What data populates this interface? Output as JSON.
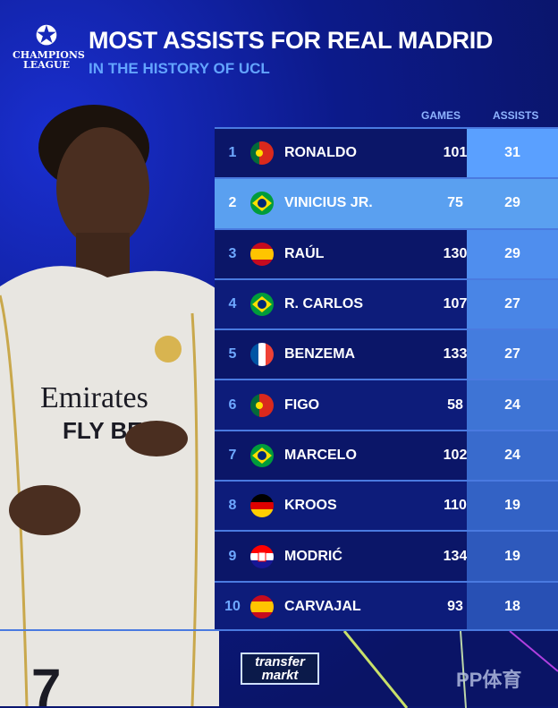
{
  "header": {
    "logo_text_1": "CHAMPIONS",
    "logo_text_2": "LEAGUE",
    "title": "MOST ASSISTS FOR REAL MADRID",
    "subtitle": "IN THE HISTORY OF UCL"
  },
  "columns": {
    "games": "GAMES",
    "assists": "ASSISTS"
  },
  "rows": [
    {
      "rank": "1",
      "flag": "portugal",
      "name": "RONALDO",
      "games": "101",
      "assists": "31"
    },
    {
      "rank": "2",
      "flag": "brazil",
      "name": "VINICIUS JR.",
      "games": "75",
      "assists": "29",
      "highlight": true
    },
    {
      "rank": "3",
      "flag": "spain",
      "name": "RAÚL",
      "games": "130",
      "assists": "29"
    },
    {
      "rank": "4",
      "flag": "brazil",
      "name": "R. CARLOS",
      "games": "107",
      "assists": "27"
    },
    {
      "rank": "5",
      "flag": "france",
      "name": "BENZEMA",
      "games": "133",
      "assists": "27"
    },
    {
      "rank": "6",
      "flag": "portugal",
      "name": "FIGO",
      "games": "58",
      "assists": "24"
    },
    {
      "rank": "7",
      "flag": "brazil",
      "name": "MARCELO",
      "games": "102",
      "assists": "24"
    },
    {
      "rank": "8",
      "flag": "germany",
      "name": "KROOS",
      "games": "110",
      "assists": "19"
    },
    {
      "rank": "9",
      "flag": "croatia",
      "name": "MODRIĆ",
      "games": "134",
      "assists": "19"
    },
    {
      "rank": "10",
      "flag": "spain",
      "name": "CARVAJAL",
      "games": "93",
      "assists": "18"
    }
  ],
  "player_image": {
    "shirt_text_1": "Emirates",
    "shirt_text_2": "FLY BE"
  },
  "footer": {
    "source_logo": "transfer markt",
    "watermark": "PP体育"
  },
  "colors": {
    "highlight": "#5aa0f0",
    "accent": "#63a4ff",
    "background": "#0a1670"
  }
}
